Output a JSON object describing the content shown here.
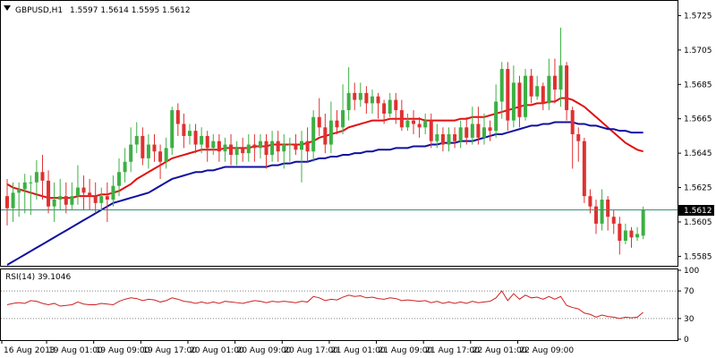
{
  "header": {
    "symbol_timeframe": "GBPUSD,H1",
    "ohlc": "1.5597 1.5614 1.5595 1.5612"
  },
  "rsi_header": "RSI(14) 39.1046",
  "current_price_label": "1.5612",
  "colors": {
    "bull": "#3CB043",
    "bear": "#E03030",
    "ma_fast": "#E01010",
    "ma_slow": "#1010A0",
    "rsi": "#D02020",
    "frame": "#000000",
    "grid_dotted": "#808080",
    "current_line": "#3C8C78"
  },
  "chart_data": [
    {
      "type": "candlestick",
      "instrument": "GBPUSD",
      "timeframe": "H1",
      "ylim": [
        1.558,
        1.5732
      ],
      "y_ticks": [
        "1.5725",
        "1.5705",
        "1.5685",
        "1.5665",
        "1.5645",
        "1.5625",
        "1.5605",
        "1.5585"
      ],
      "x_ticks": [
        "16 Aug 2013",
        "19 Aug 01:00",
        "19 Aug 09:00",
        "19 Aug 17:00",
        "20 Aug 01:00",
        "20 Aug 09:00",
        "20 Aug 17:00",
        "21 Aug 01:00",
        "21 Aug 09:00",
        "21 Aug 17:00",
        "22 Aug 01:00",
        "22 Aug 09:00"
      ],
      "candles": [
        [
          1.562,
          1.5613,
          1.563,
          1.5603
        ],
        [
          1.5613,
          1.5622,
          1.5628,
          1.5605
        ],
        [
          1.5622,
          1.5624,
          1.5628,
          1.5608
        ],
        [
          1.5624,
          1.5628,
          1.5633,
          1.561
        ],
        [
          1.5628,
          1.5628,
          1.5632,
          1.5609
        ],
        [
          1.5628,
          1.5634,
          1.5641,
          1.5618
        ],
        [
          1.5634,
          1.5629,
          1.5644,
          1.5618
        ],
        [
          1.5629,
          1.5614,
          1.5635,
          1.561
        ],
        [
          1.5614,
          1.5618,
          1.5628,
          1.5605
        ],
        [
          1.5618,
          1.562,
          1.563,
          1.5612
        ],
        [
          1.562,
          1.5615,
          1.5628,
          1.561
        ],
        [
          1.5615,
          1.562,
          1.5628,
          1.5612
        ],
        [
          1.562,
          1.5625,
          1.5638,
          1.5615
        ],
        [
          1.5625,
          1.5622,
          1.5632,
          1.5612
        ],
        [
          1.5622,
          1.562,
          1.563,
          1.5612
        ],
        [
          1.562,
          1.5616,
          1.5628,
          1.561
        ],
        [
          1.5616,
          1.562,
          1.5625,
          1.5612
        ],
        [
          1.562,
          1.5618,
          1.5628,
          1.5605
        ],
        [
          1.5618,
          1.5626,
          1.5632,
          1.5614
        ],
        [
          1.5626,
          1.5634,
          1.5642,
          1.562
        ],
        [
          1.5634,
          1.564,
          1.5648,
          1.5628
        ],
        [
          1.564,
          1.565,
          1.566,
          1.5634
        ],
        [
          1.565,
          1.5655,
          1.5663,
          1.5645
        ],
        [
          1.5655,
          1.5642,
          1.566,
          1.5638
        ],
        [
          1.5642,
          1.565,
          1.5656,
          1.5636
        ],
        [
          1.565,
          1.5646,
          1.5656,
          1.564
        ],
        [
          1.5646,
          1.564,
          1.565,
          1.563
        ],
        [
          1.564,
          1.5648,
          1.5654,
          1.5636
        ],
        [
          1.5648,
          1.567,
          1.5672,
          1.5644
        ],
        [
          1.567,
          1.5662,
          1.5674,
          1.5655
        ],
        [
          1.5662,
          1.5655,
          1.5668,
          1.5648
        ],
        [
          1.5655,
          1.5658,
          1.5662,
          1.565
        ],
        [
          1.5658,
          1.565,
          1.5662,
          1.5645
        ],
        [
          1.565,
          1.5655,
          1.566,
          1.5645
        ],
        [
          1.5655,
          1.5648,
          1.5658,
          1.564
        ],
        [
          1.5648,
          1.5652,
          1.5656,
          1.5644
        ],
        [
          1.5652,
          1.5646,
          1.5656,
          1.564
        ],
        [
          1.5646,
          1.565,
          1.5654,
          1.564
        ],
        [
          1.565,
          1.5644,
          1.5656,
          1.5638
        ],
        [
          1.5644,
          1.5648,
          1.5652,
          1.5638
        ],
        [
          1.5648,
          1.5645,
          1.5654,
          1.564
        ],
        [
          1.5645,
          1.565,
          1.5656,
          1.564
        ],
        [
          1.565,
          1.5648,
          1.5656,
          1.564
        ],
        [
          1.5648,
          1.5652,
          1.5656,
          1.5642
        ],
        [
          1.5652,
          1.5644,
          1.5656,
          1.5636
        ],
        [
          1.5644,
          1.5652,
          1.5658,
          1.564
        ],
        [
          1.5652,
          1.5646,
          1.5658,
          1.564
        ],
        [
          1.5646,
          1.565,
          1.5656,
          1.5636
        ],
        [
          1.565,
          1.565,
          1.5654,
          1.564
        ],
        [
          1.565,
          1.5647,
          1.5656,
          1.5644
        ],
        [
          1.5647,
          1.5652,
          1.5658,
          1.5628
        ],
        [
          1.5652,
          1.5646,
          1.566,
          1.564
        ],
        [
          1.5646,
          1.5666,
          1.567,
          1.564
        ],
        [
          1.5666,
          1.566,
          1.5677,
          1.5655
        ],
        [
          1.566,
          1.565,
          1.5668,
          1.5645
        ],
        [
          1.565,
          1.5664,
          1.5675,
          1.5645
        ],
        [
          1.5664,
          1.566,
          1.567,
          1.5656
        ],
        [
          1.566,
          1.567,
          1.5685,
          1.5656
        ],
        [
          1.567,
          1.568,
          1.5695,
          1.5664
        ],
        [
          1.568,
          1.5676,
          1.5686,
          1.567
        ],
        [
          1.5676,
          1.568,
          1.5686,
          1.5672
        ],
        [
          1.568,
          1.5674,
          1.5684,
          1.5668
        ],
        [
          1.5674,
          1.5678,
          1.5682,
          1.5668
        ],
        [
          1.5678,
          1.5674,
          1.568,
          1.5665
        ],
        [
          1.5674,
          1.5668,
          1.5676,
          1.5662
        ],
        [
          1.5668,
          1.5676,
          1.568,
          1.5666
        ],
        [
          1.5676,
          1.567,
          1.568,
          1.5662
        ],
        [
          1.567,
          1.566,
          1.5676,
          1.5658
        ],
        [
          1.566,
          1.5664,
          1.5668,
          1.5658
        ],
        [
          1.5664,
          1.5662,
          1.567,
          1.5656
        ],
        [
          1.5662,
          1.566,
          1.5666,
          1.5654
        ],
        [
          1.566,
          1.5664,
          1.5668,
          1.5656
        ],
        [
          1.5664,
          1.5652,
          1.5668,
          1.5648
        ],
        [
          1.5652,
          1.5656,
          1.5662,
          1.5648
        ],
        [
          1.5656,
          1.565,
          1.566,
          1.5646
        ],
        [
          1.565,
          1.5656,
          1.566,
          1.5646
        ],
        [
          1.5656,
          1.5652,
          1.566,
          1.5648
        ],
        [
          1.5652,
          1.566,
          1.5664,
          1.5648
        ],
        [
          1.566,
          1.5654,
          1.5666,
          1.565
        ],
        [
          1.5654,
          1.5662,
          1.5672,
          1.565
        ],
        [
          1.5662,
          1.5654,
          1.5672,
          1.565
        ],
        [
          1.5654,
          1.566,
          1.5668,
          1.565
        ],
        [
          1.566,
          1.5658,
          1.5664,
          1.5652
        ],
        [
          1.5658,
          1.5675,
          1.5685,
          1.5654
        ],
        [
          1.5675,
          1.5694,
          1.5698,
          1.5665
        ],
        [
          1.5694,
          1.5664,
          1.5698,
          1.5658
        ],
        [
          1.5664,
          1.5686,
          1.5696,
          1.566
        ],
        [
          1.5686,
          1.5666,
          1.569,
          1.566
        ],
        [
          1.5666,
          1.569,
          1.5694,
          1.5664
        ],
        [
          1.569,
          1.5678,
          1.5694,
          1.5674
        ],
        [
          1.5678,
          1.5684,
          1.569,
          1.5676
        ],
        [
          1.5684,
          1.5674,
          1.5686,
          1.567
        ],
        [
          1.5674,
          1.569,
          1.57,
          1.567
        ],
        [
          1.569,
          1.5682,
          1.57,
          1.5674
        ],
        [
          1.5682,
          1.5696,
          1.5718,
          1.5672
        ],
        [
          1.5696,
          1.567,
          1.5698,
          1.5664
        ],
        [
          1.567,
          1.5656,
          1.5672,
          1.5636
        ],
        [
          1.5656,
          1.5652,
          1.566,
          1.564
        ],
        [
          1.5652,
          1.562,
          1.5654,
          1.5616
        ],
        [
          1.562,
          1.5614,
          1.5624,
          1.561
        ],
        [
          1.5614,
          1.5604,
          1.5618,
          1.5598
        ],
        [
          1.5604,
          1.5618,
          1.5624,
          1.56
        ],
        [
          1.5618,
          1.5608,
          1.562,
          1.56
        ],
        [
          1.5608,
          1.5604,
          1.5612,
          1.5598
        ],
        [
          1.5604,
          1.5594,
          1.5608,
          1.5586
        ],
        [
          1.5594,
          1.56,
          1.5604,
          1.5592
        ],
        [
          1.56,
          1.5596,
          1.5602,
          1.559
        ],
        [
          1.5596,
          1.5598,
          1.5602,
          1.5594
        ],
        [
          1.5597,
          1.5612,
          1.5614,
          1.5595
        ]
      ],
      "series": [
        {
          "name": "",
          "type": "line",
          "color": "#E01010",
          "values": [
            1.5627,
            1.5625,
            1.5624,
            1.5623,
            1.5622,
            1.5621,
            1.562,
            1.5619,
            1.5619,
            1.5619,
            1.5619,
            1.5619,
            1.562,
            1.562,
            1.562,
            1.562,
            1.5621,
            1.5621,
            1.5622,
            1.5623,
            1.5625,
            1.5627,
            1.563,
            1.5632,
            1.5634,
            1.5636,
            1.5638,
            1.564,
            1.5642,
            1.5643,
            1.5644,
            1.5645,
            1.5646,
            1.5647,
            1.5647,
            1.5647,
            1.5647,
            1.5648,
            1.5648,
            1.5648,
            1.5648,
            1.5648,
            1.5649,
            1.5649,
            1.5649,
            1.565,
            1.565,
            1.565,
            1.565,
            1.565,
            1.565,
            1.5651,
            1.5652,
            1.5654,
            1.5655,
            1.5656,
            1.5657,
            1.5658,
            1.566,
            1.5661,
            1.5662,
            1.5663,
            1.5664,
            1.5664,
            1.5664,
            1.5665,
            1.5665,
            1.5665,
            1.5665,
            1.5665,
            1.5665,
            1.5664,
            1.5664,
            1.5664,
            1.5664,
            1.5664,
            1.5664,
            1.5665,
            1.5665,
            1.5666,
            1.5666,
            1.5666,
            1.5667,
            1.5668,
            1.5669,
            1.567,
            1.5671,
            1.5672,
            1.5673,
            1.5673,
            1.5674,
            1.5674,
            1.5675,
            1.5675,
            1.5677,
            1.5677,
            1.5676,
            1.5674,
            1.5672,
            1.5669,
            1.5666,
            1.5663,
            1.566,
            1.5657,
            1.5654,
            1.5651,
            1.5649,
            1.5647,
            1.5646
          ]
        },
        {
          "name": "",
          "type": "line",
          "color": "#1010A0",
          "values": [
            1.558,
            1.5582,
            1.5584,
            1.5586,
            1.5588,
            1.559,
            1.5592,
            1.5594,
            1.5596,
            1.5598,
            1.56,
            1.5602,
            1.5604,
            1.5606,
            1.5608,
            1.561,
            1.5612,
            1.5614,
            1.5616,
            1.5617,
            1.5618,
            1.5619,
            1.562,
            1.5621,
            1.5622,
            1.5624,
            1.5626,
            1.5628,
            1.563,
            1.5631,
            1.5632,
            1.5633,
            1.5634,
            1.5634,
            1.5635,
            1.5635,
            1.5636,
            1.5637,
            1.5637,
            1.5637,
            1.5637,
            1.5637,
            1.5637,
            1.5637,
            1.5637,
            1.5638,
            1.5638,
            1.5639,
            1.5639,
            1.564,
            1.564,
            1.564,
            1.5641,
            1.5642,
            1.5642,
            1.5643,
            1.5643,
            1.5644,
            1.5644,
            1.5645,
            1.5645,
            1.5646,
            1.5646,
            1.5647,
            1.5647,
            1.5647,
            1.5648,
            1.5648,
            1.5648,
            1.5649,
            1.5649,
            1.5649,
            1.565,
            1.565,
            1.5651,
            1.5651,
            1.5651,
            1.5652,
            1.5652,
            1.5652,
            1.5653,
            1.5654,
            1.5655,
            1.5656,
            1.5656,
            1.5657,
            1.5658,
            1.5659,
            1.566,
            1.5661,
            1.5661,
            1.5662,
            1.5662,
            1.5663,
            1.5663,
            1.5663,
            1.5663,
            1.5662,
            1.5662,
            1.5661,
            1.5661,
            1.566,
            1.5659,
            1.5659,
            1.5658,
            1.5658,
            1.5657,
            1.5657,
            1.5657
          ]
        }
      ],
      "current_price": 1.5612
    },
    {
      "type": "line",
      "indicator": "RSI(14)",
      "ylim": [
        0,
        100
      ],
      "y_ticks": [
        "100",
        "70",
        "30",
        "0"
      ],
      "levels": [
        70,
        30
      ],
      "series": [
        {
          "name": "",
          "color": "#D02020",
          "values": [
            50,
            52,
            53,
            52,
            56,
            55,
            52,
            50,
            52,
            48,
            49,
            50,
            54,
            51,
            50,
            50,
            52,
            51,
            50,
            55,
            58,
            60,
            59,
            56,
            58,
            57,
            54,
            56,
            60,
            58,
            55,
            54,
            52,
            54,
            52,
            54,
            52,
            55,
            54,
            53,
            52,
            54,
            56,
            55,
            53,
            55,
            54,
            55,
            54,
            53,
            55,
            54,
            62,
            60,
            56,
            58,
            57,
            61,
            64,
            62,
            63,
            60,
            61,
            59,
            58,
            60,
            59,
            56,
            57,
            56,
            55,
            56,
            53,
            55,
            52,
            54,
            52,
            54,
            52,
            55,
            53,
            54,
            55,
            60,
            70,
            56,
            66,
            58,
            64,
            60,
            61,
            58,
            62,
            58,
            62,
            49,
            46,
            44,
            38,
            36,
            32,
            35,
            33,
            32,
            30,
            32,
            31,
            32,
            39
          ]
        }
      ]
    }
  ]
}
